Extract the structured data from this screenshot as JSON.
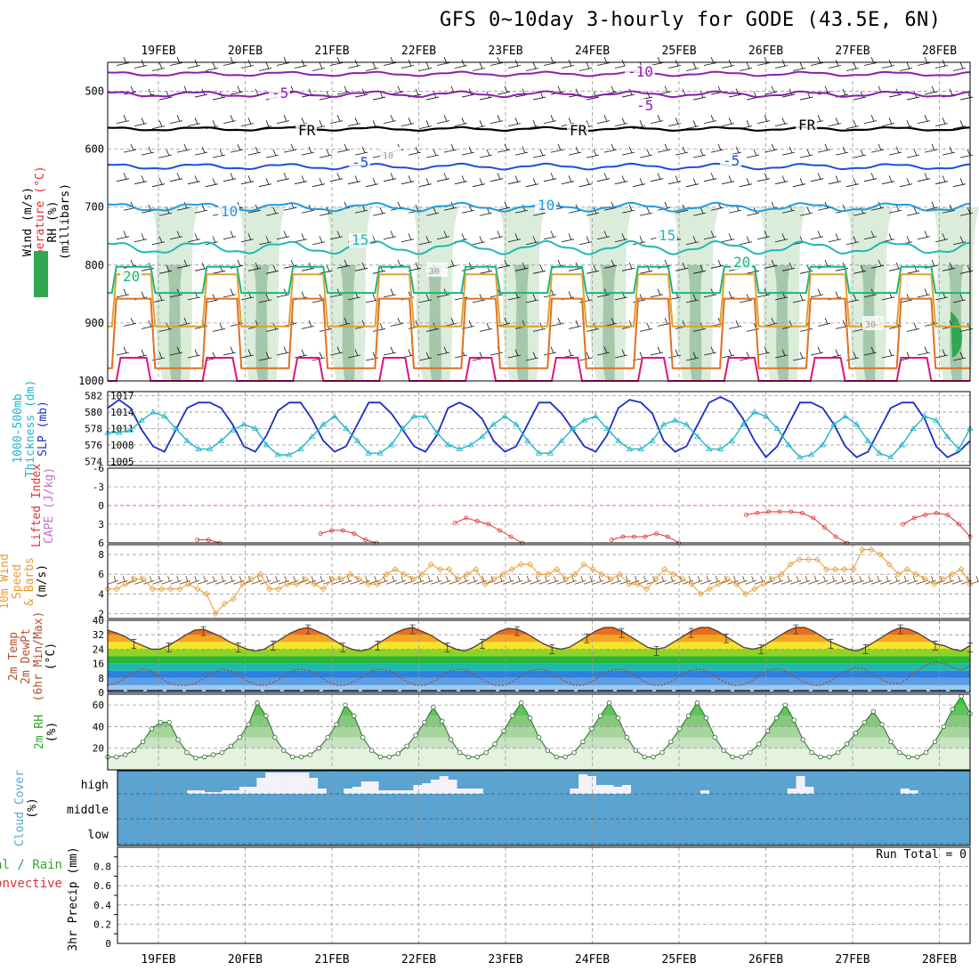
{
  "title": "GFS 0~10day 3-hourly for GODE (43.5E, 6N)",
  "dates": [
    "19FEB",
    "20FEB",
    "21FEB",
    "22FEB",
    "23FEB",
    "24FEB",
    "25FEB",
    "26FEB",
    "27FEB",
    "28FEB"
  ],
  "colors": {
    "purple": "#8b1fb0",
    "black": "#000000",
    "blue": "#1f4fd6",
    "lightblue": "#1f9be0",
    "teal": "#20b8b8",
    "green": "#17b87e",
    "orange": "#e0a030",
    "darkorange": "#e07020",
    "magenta": "#e0107a",
    "cyan": "#21b4c8",
    "navy": "#1a2fc8",
    "red": "#e03030",
    "windorange": "#e89a30",
    "barbbrown": "#7a5030",
    "rhgreen": "#2fa82f",
    "cloud": "#5ba3d0"
  },
  "chart_data": [
    {
      "type": "area",
      "name": "upper-air",
      "left_labels": [
        "Wind (m/s)",
        "Temperature (°C)",
        "RH (%)",
        "(millibars)"
      ],
      "ylabels": [
        "500",
        "600",
        "700",
        "800",
        "900",
        "1000"
      ],
      "ylim": [
        450,
        1000
      ],
      "contour_labels": [
        "-10",
        "-5",
        "-5",
        "FR",
        "FR",
        "FR",
        "-5",
        "-5",
        "10",
        "10",
        "15",
        "15",
        "20",
        "20",
        "10",
        "30",
        "30"
      ],
      "isotherms": [
        {
          "level": "-10",
          "p": 470,
          "amp": 6
        },
        {
          "level": "-5",
          "p": 505,
          "amp": 8
        },
        {
          "level": "FR",
          "p": 565,
          "amp": 5
        },
        {
          "level": "-5",
          "p": 630,
          "amp": 8
        },
        {
          "level": "10",
          "p": 700,
          "amp": 12
        },
        {
          "level": "15",
          "p": 770,
          "amp": 18
        },
        {
          "level": "20",
          "p": 830,
          "amp": 30
        },
        {
          "level": "25",
          "p": 870,
          "amp": 60
        },
        {
          "level": "30",
          "p": 930,
          "amp": 80
        },
        {
          "level": "35",
          "p": 975,
          "amp": 40
        }
      ]
    },
    {
      "type": "line",
      "name": "thickness-slp",
      "left_labels": [
        "1000-500mb",
        "Thickness (dm)",
        "SLP (mb)"
      ],
      "ylabels_left": [
        "582",
        "580",
        "578",
        "576",
        "574"
      ],
      "ylabels_right": [
        "1017",
        "1014",
        "1011",
        "1008",
        "1005"
      ],
      "series": [
        {
          "name": "SLP",
          "values": [
            1015,
            1016.5,
            1015,
            1011,
            1008,
            1007,
            1011,
            1015,
            1016,
            1016,
            1015,
            1012,
            1008,
            1007,
            1010,
            1014.5,
            1016,
            1016,
            1013,
            1009,
            1007,
            1008,
            1012,
            1016,
            1016,
            1014,
            1011,
            1008,
            1007,
            1010,
            1015,
            1016,
            1015,
            1013,
            1009,
            1007,
            1008,
            1012,
            1016,
            1016,
            1014,
            1011,
            1008,
            1007,
            1010,
            1015,
            1016.5,
            1016,
            1014,
            1009,
            1007,
            1008,
            1012,
            1016,
            1017,
            1016,
            1013,
            1009,
            1006,
            1008,
            1012,
            1016,
            1016,
            1015,
            1012,
            1008,
            1006,
            1007,
            1011,
            1015,
            1016,
            1016,
            1013,
            1008,
            1006,
            1007,
            1009
          ]
        },
        {
          "name": "Thickness",
          "values": [
            577.5,
            577.5,
            577.8,
            579,
            580,
            579.5,
            578,
            576.5,
            575.5,
            575.5,
            576.5,
            577.8,
            578.5,
            578,
            576,
            574.8,
            574.8,
            575.5,
            577,
            578.5,
            579.5,
            578,
            576.5,
            575,
            575,
            576,
            578,
            579.5,
            579.5,
            577.5,
            576,
            575.5,
            576,
            577,
            578.5,
            579.5,
            578.5,
            576.5,
            575,
            575,
            576.5,
            578,
            579,
            579.5,
            578,
            576.5,
            575.5,
            575.5,
            576.5,
            578.5,
            579,
            578.5,
            577,
            575.5,
            575.5,
            576.5,
            578.5,
            580,
            579.5,
            578,
            576,
            574.5,
            574.8,
            576,
            578.5,
            579.5,
            578.5,
            576.5,
            575,
            574.5,
            576,
            578,
            579.5,
            579,
            577,
            575.5,
            578
          ]
        }
      ]
    },
    {
      "type": "line",
      "name": "lifted-index",
      "left_labels": [
        "Lifted Index",
        "CAPE (J/kg)"
      ],
      "ylabels": [
        "-6",
        "-3",
        "0",
        "3",
        "6"
      ],
      "ylim": [
        -6,
        6
      ],
      "series": [
        {
          "name": "Lifted Index",
          "values": [
            null,
            null,
            null,
            null,
            null,
            null,
            null,
            null,
            5.5,
            5.5,
            6,
            null,
            null,
            null,
            null,
            null,
            null,
            null,
            null,
            4.5,
            4,
            4,
            4.5,
            5.5,
            6,
            null,
            null,
            null,
            null,
            null,
            null,
            2.8,
            2,
            2.5,
            3,
            4,
            5,
            6,
            null,
            null,
            null,
            null,
            null,
            null,
            null,
            5.5,
            5,
            5,
            5,
            4.5,
            5,
            6,
            null,
            null,
            null,
            null,
            null,
            1.5,
            1.2,
            1,
            1,
            1,
            1.2,
            2,
            3.5,
            5,
            6,
            null,
            null,
            null,
            null,
            3,
            2,
            1.5,
            1.2,
            1.5,
            3,
            5
          ]
        }
      ]
    },
    {
      "type": "line",
      "name": "10m-wind",
      "left_labels": [
        "10m Wind",
        "Speed",
        "& Barbs",
        "(m/s)"
      ],
      "ylabels": [
        "2",
        "4",
        "6",
        "8"
      ],
      "ylim": [
        1.5,
        9
      ],
      "series": [
        {
          "name": "Speed",
          "values": [
            4.5,
            4.5,
            5,
            5.5,
            5.5,
            4.5,
            4.5,
            4.5,
            4.5,
            5,
            4.5,
            4,
            2,
            3,
            3.5,
            5,
            5.5,
            6,
            4.5,
            4.5,
            5,
            5,
            5.5,
            5,
            4.5,
            5.5,
            5.5,
            6,
            5.5,
            5,
            5,
            6,
            6.5,
            6,
            5.5,
            6,
            7,
            6.5,
            6.5,
            5.5,
            6,
            6.5,
            5,
            5.5,
            6,
            6.5,
            7,
            7,
            6,
            6,
            6.5,
            5.5,
            6,
            7,
            6.5,
            6,
            5.5,
            6,
            5,
            5,
            4.5,
            5.5,
            6.5,
            6,
            5.5,
            5,
            4,
            4.5,
            5,
            5.5,
            5,
            4,
            4.5,
            5,
            5.5,
            6,
            7,
            7.5,
            7.5,
            7.5,
            6.5,
            6.5,
            6.5,
            6.5,
            8.5,
            8.5,
            8,
            7,
            6,
            6.5,
            6,
            5.5,
            5,
            5.5,
            6,
            6.5,
            5
          ]
        }
      ]
    },
    {
      "type": "area",
      "name": "2m-temp",
      "left_labels": [
        "2m Temp",
        "2m DewPt",
        "(6hr Min/Max)",
        "(°C)"
      ],
      "ylabels": [
        "40",
        "32",
        "24",
        "16",
        "8",
        "0"
      ],
      "ylim": [
        0,
        40
      ],
      "series": [
        {
          "name": "Temp",
          "values": [
            34.5,
            33,
            31,
            28,
            26,
            24,
            24,
            26,
            29,
            32,
            34.5,
            35,
            33,
            31,
            28,
            26,
            24,
            23,
            24,
            27,
            30,
            33,
            35,
            36,
            34,
            32,
            29,
            26,
            24,
            23,
            24,
            27,
            30,
            33,
            35,
            36,
            34,
            32,
            29,
            26,
            24,
            23,
            25,
            28,
            31,
            34,
            35.5,
            35,
            33,
            30,
            27,
            25,
            24,
            25,
            28,
            31,
            34,
            36,
            36,
            34,
            31,
            28,
            25,
            24,
            25,
            28,
            31,
            34,
            36,
            36,
            34,
            31,
            28,
            25,
            24,
            25,
            28,
            31,
            34,
            36,
            36,
            34,
            31,
            28,
            26,
            24,
            23,
            25,
            28,
            31,
            34,
            36,
            35,
            33,
            30,
            27,
            26,
            24,
            23,
            26
          ]
        },
        {
          "name": "DewPt",
          "values": [
            4,
            5,
            8,
            11,
            13,
            12,
            8,
            5,
            4,
            4,
            5,
            8,
            11,
            13,
            12,
            9,
            6,
            4,
            4,
            6,
            9,
            12,
            13,
            12,
            9,
            6,
            4,
            4,
            6,
            9,
            12,
            13,
            12,
            9,
            6,
            4,
            4,
            6,
            9,
            12,
            13,
            12,
            9,
            6,
            4,
            4,
            6,
            9,
            12,
            13,
            12,
            9,
            6,
            4,
            4,
            6,
            9,
            12,
            13,
            12,
            9,
            6,
            4,
            4,
            6,
            9,
            12,
            13,
            12,
            9,
            6,
            4,
            4,
            6,
            9,
            12,
            13,
            12,
            9,
            6,
            4,
            4,
            6,
            9,
            12,
            14,
            13,
            10,
            7,
            5,
            5,
            8,
            12,
            15,
            17,
            16,
            14,
            12,
            15
          ]
        }
      ]
    },
    {
      "type": "area",
      "name": "2m-rh",
      "left_labels": [
        "2m RH",
        "(%)"
      ],
      "ylabels": [
        "60",
        "40",
        "20"
      ],
      "ylim": [
        0,
        70
      ],
      "series": [
        {
          "name": "RH",
          "values": [
            12,
            12,
            14,
            18,
            26,
            38,
            44,
            44,
            28,
            16,
            11,
            12,
            14,
            16,
            22,
            30,
            42,
            62,
            50,
            30,
            18,
            12,
            12,
            14,
            20,
            30,
            42,
            60,
            50,
            30,
            18,
            12,
            12,
            15,
            22,
            32,
            44,
            58,
            45,
            28,
            16,
            12,
            12,
            16,
            24,
            36,
            50,
            62,
            48,
            30,
            18,
            12,
            12,
            16,
            26,
            38,
            50,
            62,
            48,
            30,
            18,
            12,
            12,
            16,
            26,
            38,
            50,
            62,
            48,
            30,
            18,
            12,
            12,
            16,
            24,
            36,
            48,
            60,
            46,
            28,
            16,
            12,
            12,
            16,
            24,
            34,
            44,
            54,
            42,
            26,
            16,
            12,
            12,
            16,
            26,
            40,
            56,
            68,
            52
          ]
        }
      ]
    },
    {
      "type": "area",
      "name": "cloud-cover",
      "left_labels": [
        "Cloud Cover",
        "(%)"
      ],
      "ylabels": [
        "high",
        "middle",
        "low"
      ],
      "series": [
        {
          "name": "High",
          "values": [
            0,
            0,
            0,
            0,
            0,
            0,
            0,
            0,
            0.2,
            0.2,
            0.1,
            0.1,
            0.2,
            0.2,
            0.4,
            0.4,
            0.9,
            1.2,
            1.2,
            1.2,
            1.2,
            1.2,
            0.9,
            0.3,
            0,
            0,
            0.3,
            0.4,
            0.7,
            0.7,
            0.2,
            0.2,
            0.2,
            0.2,
            0.5,
            0.6,
            0.8,
            1,
            0.8,
            0.3,
            0.3,
            0.3,
            0,
            0,
            0,
            0,
            0,
            0,
            0,
            0,
            0,
            0,
            0.3,
            1.1,
            1,
            0.5,
            0.5,
            0.4,
            0.5,
            0,
            0,
            0,
            0,
            0,
            0,
            0,
            0,
            0.2,
            0,
            0,
            0,
            0,
            0,
            0,
            0,
            0,
            0,
            0.3,
            1,
            0.4,
            0,
            0,
            0,
            0,
            0,
            0,
            0,
            0,
            0,
            0,
            0.3,
            0.2,
            0,
            0,
            0,
            0,
            0,
            0
          ]
        }
      ]
    },
    {
      "type": "bar",
      "name": "precip",
      "left_labels": [
        "3hr Precip (mm)",
        "Total / Rain",
        "Convective"
      ],
      "ylabels": [
        "0.8",
        "0.6",
        "0.4",
        "0.2",
        "0"
      ],
      "ylim": [
        0,
        1
      ],
      "run_total": "Run Total = 0",
      "values": []
    }
  ]
}
